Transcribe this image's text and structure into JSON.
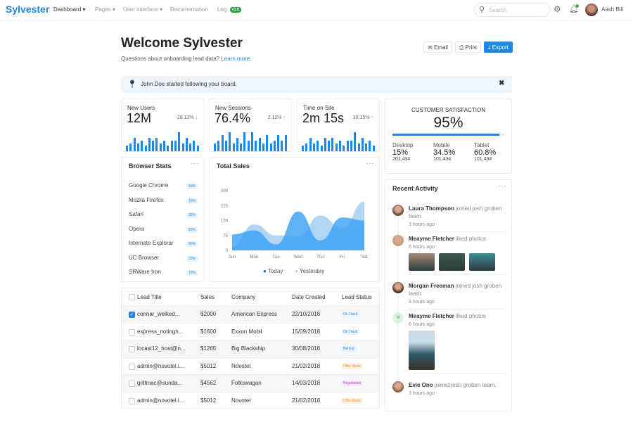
{
  "header": {
    "logo": "Sylvester",
    "nav": [
      {
        "label": "Dashboard",
        "dropdown": true,
        "active": true
      },
      {
        "label": "Pages",
        "dropdown": true
      },
      {
        "label": "User interface",
        "dropdown": true
      },
      {
        "label": "Documentation"
      },
      {
        "label": "Log",
        "badge": "v1.0"
      }
    ],
    "search_placeholder": "Search",
    "user_name": "Aash Bill",
    "icons": [
      "search-icon",
      "gear-icon",
      "bell-icon"
    ]
  },
  "page": {
    "title": "Welcome Sylvester",
    "subtitle": "Questions about onboarding lead data?",
    "learn_more": "Learn more.",
    "buttons": {
      "email": "Email",
      "print": "Print",
      "export": "Export"
    }
  },
  "alert": {
    "text": "John Doe started following your board.",
    "icon": "map-pin-icon"
  },
  "stats": [
    {
      "label": "New Users",
      "value": "12M",
      "change": "-28.12%",
      "direction": "down",
      "bars": [
        2,
        3,
        5,
        3,
        4,
        2,
        5,
        4,
        5,
        3,
        4,
        2,
        4,
        4,
        7,
        3,
        5,
        3,
        4,
        2
      ]
    },
    {
      "label": "New Sessions",
      "value": "76.4%",
      "change": "2.12%",
      "direction": "up",
      "bars": [
        3,
        4,
        6,
        4,
        7,
        3,
        5,
        3,
        7,
        4,
        7,
        4,
        5,
        3,
        6,
        3,
        4,
        6,
        4,
        6
      ]
    },
    {
      "label": "Time on Site",
      "value": "2m 15s",
      "change": "39.15%",
      "direction": "up",
      "bars": [
        2,
        3,
        5,
        3,
        4,
        2,
        5,
        4,
        5,
        3,
        4,
        2,
        4,
        4,
        7,
        3,
        5,
        3,
        4,
        2
      ]
    }
  ],
  "satisfaction": {
    "title": "CUSTOMER SATISFACTION",
    "value": "95%",
    "progress": 95,
    "segments": [
      {
        "label": "Desktop",
        "value": "15%",
        "count": "201,434"
      },
      {
        "label": "Mobile",
        "value": "34.5%",
        "count": "101,434"
      },
      {
        "label": "Tablet",
        "value": "60.8%",
        "count": "101,434"
      }
    ]
  },
  "browser_stats": {
    "title": "Browser Stats",
    "items": [
      {
        "name": "Google Chrome",
        "pct": "50%"
      },
      {
        "name": "Mozila Firefox",
        "pct": "10%"
      },
      {
        "name": "Safari",
        "pct": "30%"
      },
      {
        "name": "Opera",
        "pct": "80%"
      },
      {
        "name": "Internate Explorar",
        "pct": "90%"
      },
      {
        "name": "UC Browser",
        "pct": "20%"
      },
      {
        "name": "SRWare Iron",
        "pct": "10%"
      }
    ]
  },
  "chart_data": {
    "type": "area",
    "title": "Total Sales",
    "categories": [
      "Sun",
      "Mon",
      "Tue",
      "Wed",
      "Thu",
      "Fri",
      "Sat"
    ],
    "yticks": [
      "0",
      "75",
      "150",
      "225",
      "300"
    ],
    "ylim": [
      0,
      300
    ],
    "legend": "bottom",
    "series": [
      {
        "name": "Today",
        "color": "#42a5f5",
        "values": [
          80,
          100,
          30,
          195,
          50,
          165,
          150
        ]
      },
      {
        "name": "Yesterday",
        "color": "#a9d1f3",
        "values": [
          20,
          130,
          75,
          70,
          175,
          110,
          245
        ]
      }
    ]
  },
  "table": {
    "headers": [
      "Lead Title",
      "Sales",
      "Company",
      "Date Created",
      "Lead Status"
    ],
    "rows": [
      {
        "checked": true,
        "title": "connar_weiked...",
        "sales": "$2000",
        "company": "American Express",
        "date": "22/10/2018",
        "status": "On Track"
      },
      {
        "checked": false,
        "title": "express_notingh...",
        "sales": "$1600",
        "company": "Exxon Mobil",
        "date": "15/09/2018",
        "status": "On Track"
      },
      {
        "checked": false,
        "title": "locast12_host@n...",
        "sales": "$1265",
        "company": "Big Blackship",
        "date": "30/08/2018",
        "status": "Behind"
      },
      {
        "checked": false,
        "title": "admin@novotel.i...",
        "sales": "$5012",
        "company": "Novotel",
        "date": "21/02/2018",
        "status": "Offer Made"
      },
      {
        "checked": false,
        "title": "grillmac@sunda...",
        "sales": "$4562",
        "company": "Folkswagan",
        "date": "14/03/2018",
        "status": "Negotiation"
      },
      {
        "checked": false,
        "title": "admin@novotel.i...",
        "sales": "$5012",
        "company": "Novotel",
        "date": "21/02/2018",
        "status": "Offer Made"
      }
    ]
  },
  "activity": {
    "title": "Recent Activity",
    "items": [
      {
        "name": "Laura Thompson",
        "action": "joined josh groben team.",
        "time": "3 hours ago"
      },
      {
        "name": "Meayme Fletcher",
        "action": "liked photos",
        "time": "6 hours ago"
      },
      {
        "name": "Morgan Freeman",
        "action": "joined josh groben team.",
        "time": "3 hours ago"
      },
      {
        "name": "Meayme Fletcher",
        "action": "liked photos",
        "time": "6 hours ago",
        "initial": "M"
      },
      {
        "name": "Evie Ono",
        "action": "joined josh groben team.",
        "time": "3 hours ago"
      }
    ]
  }
}
